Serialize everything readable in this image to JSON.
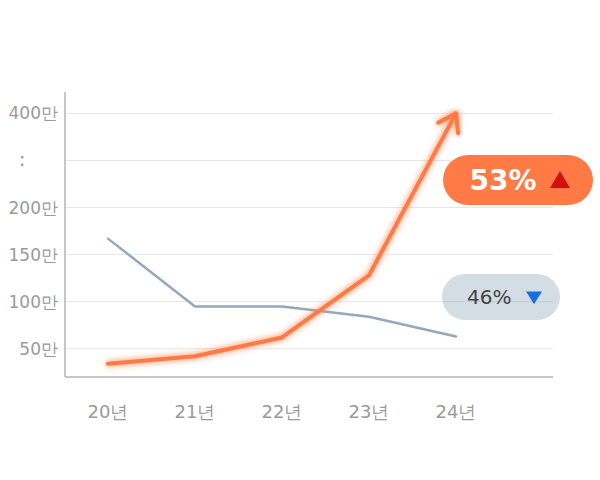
{
  "chart_data": {
    "type": "line",
    "categories": [
      "20년",
      "21년",
      "22년",
      "23년",
      "24년"
    ],
    "series": [
      {
        "color": "#ff7a45",
        "values": [
          34,
          42,
          62,
          128,
          400
        ],
        "marker": "arrow",
        "annotation": "53%"
      },
      {
        "color": "#93a9bb",
        "values": [
          167,
          95,
          95,
          84,
          63
        ],
        "annotation": "46%"
      }
    ],
    "ylim": [
      20,
      420
    ],
    "yticks": [
      {
        "value": 50,
        "label": "50만"
      },
      {
        "value": 100,
        "label": "100만"
      },
      {
        "value": 150,
        "label": "150만"
      },
      {
        "value": 200,
        "label": "200만"
      },
      {
        "value": 300,
        "label": ":"
      },
      {
        "value": 400,
        "label": "400만"
      }
    ],
    "grid": true
  }
}
